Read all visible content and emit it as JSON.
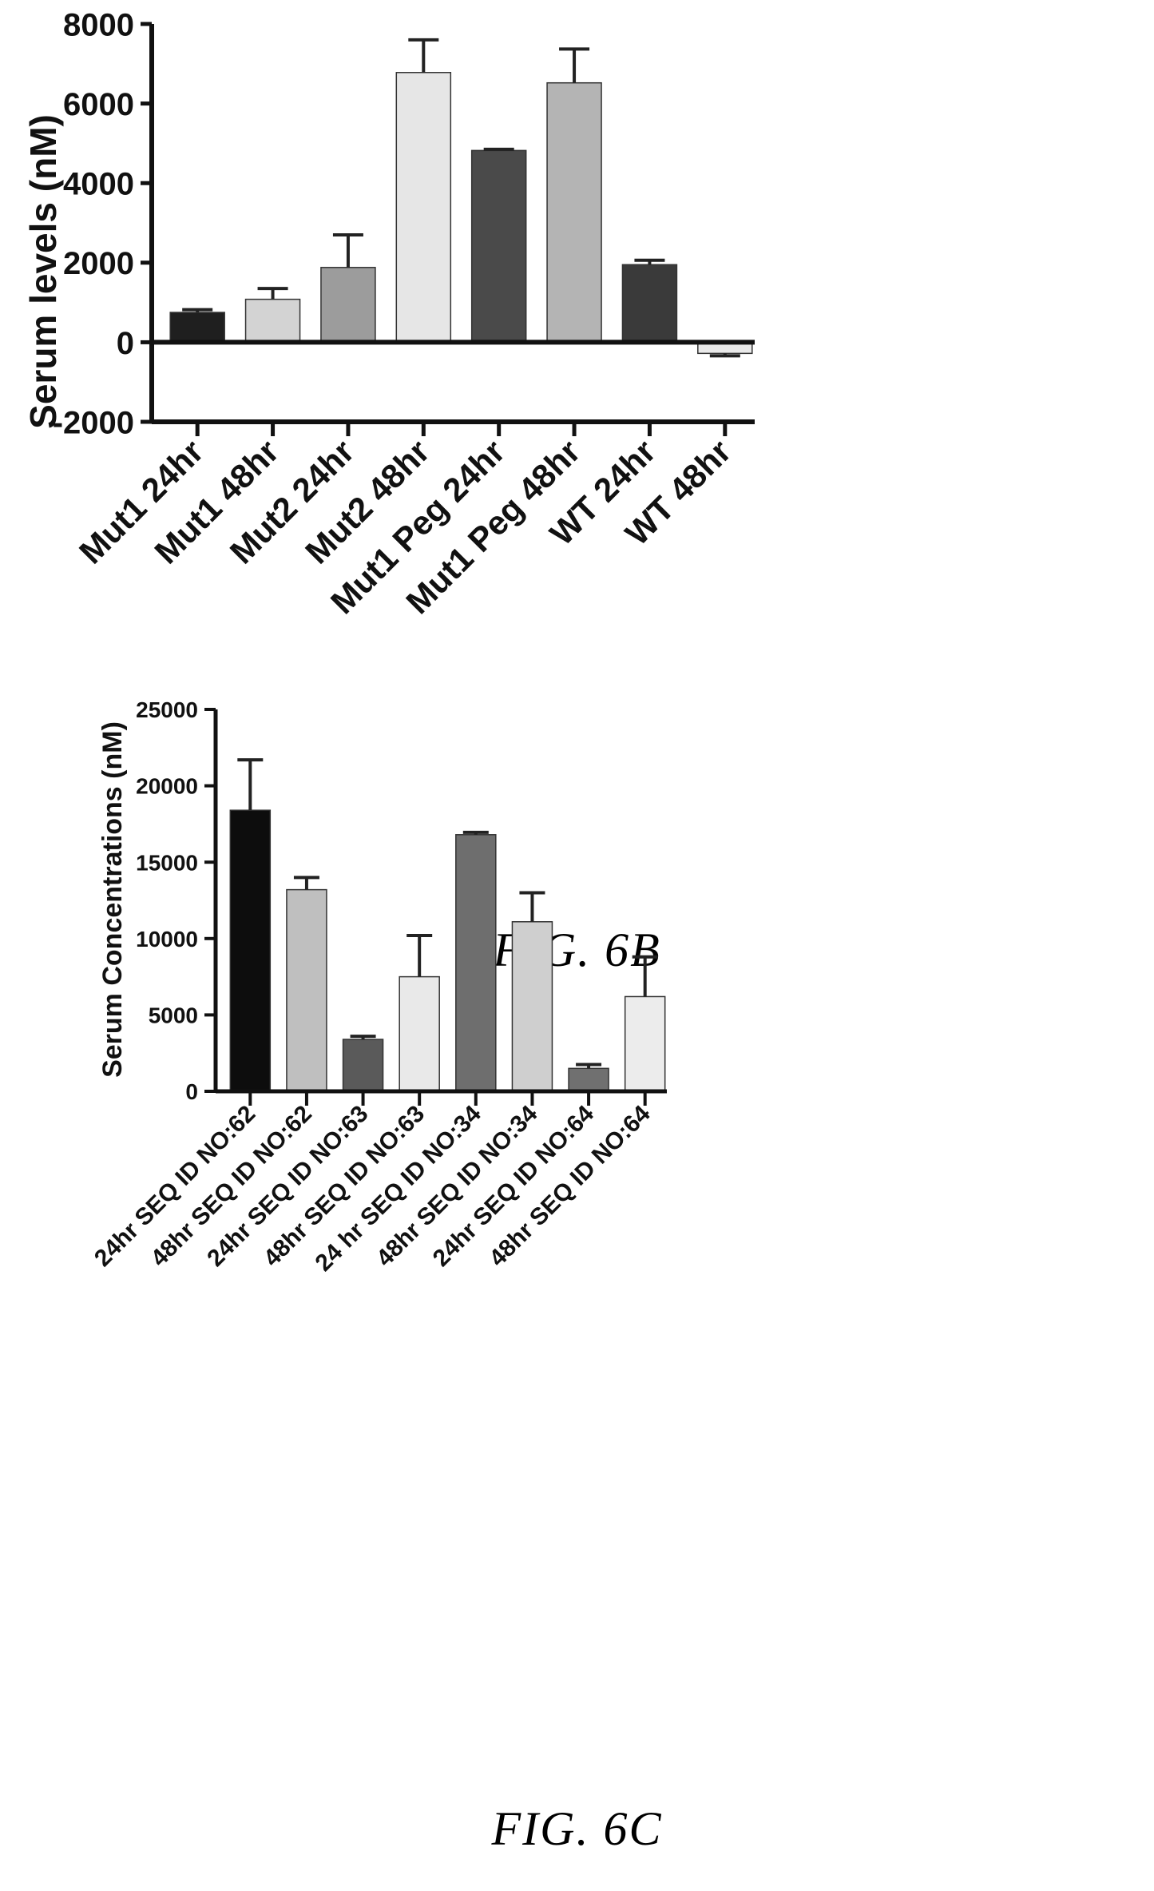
{
  "figures": [
    {
      "caption": "FIG. 6B",
      "chart_data": {
        "type": "bar",
        "title": "",
        "xlabel": "",
        "ylabel": "Serum levels (nM)",
        "ylim": [
          -2000,
          8000
        ],
        "yticks": [
          "8000",
          "6000",
          "4000",
          "2000",
          "0",
          "-2000"
        ],
        "grid": false,
        "categories": [
          "Mut1 24hr",
          "Mut1 48hr",
          "Mut2 24hr",
          "Mut2 48hr",
          "Mut1 Peg 24hr",
          "Mut1 Peg 48hr",
          "WT 24hr",
          "WT 48hr"
        ],
        "values": [
          750,
          1080,
          1880,
          6780,
          4820,
          6520,
          1950,
          -280
        ],
        "errors": [
          70,
          270,
          820,
          820,
          30,
          850,
          110,
          60
        ],
        "colors": [
          "#1f1f1f",
          "#d3d3d3",
          "#9c9c9c",
          "#e6e6e6",
          "#4a4a4a",
          "#b4b4b4",
          "#3a3a3a",
          "#e9e9e9"
        ]
      }
    },
    {
      "caption": "FIG. 6C",
      "chart_data": {
        "type": "bar",
        "title": "",
        "xlabel": "",
        "ylabel": "Serum Concentrations (nM)",
        "ylim": [
          0,
          25000
        ],
        "yticks": [
          "25000",
          "20000",
          "15000",
          "10000",
          "5000",
          "0"
        ],
        "grid": false,
        "categories": [
          "24hr SEQ ID NO:62",
          "48hr SEQ ID NO:62",
          "24hr SEQ ID NO:63",
          "48hr SEQ ID NO:63",
          "24 hr SEQ ID NO:34",
          "48hr SEQ ID NO:34",
          "24hr SEQ ID NO:64",
          "48hr SEQ ID NO:64"
        ],
        "values": [
          18400,
          13200,
          3400,
          7500,
          16800,
          11100,
          1500,
          6200
        ],
        "errors": [
          3300,
          800,
          200,
          2700,
          150,
          1900,
          250,
          2600
        ],
        "colors": [
          "#0d0d0d",
          "#bfbfbf",
          "#5a5a5a",
          "#e9e9e9",
          "#6e6e6e",
          "#cfcfcf",
          "#707070",
          "#ececec"
        ]
      }
    }
  ]
}
